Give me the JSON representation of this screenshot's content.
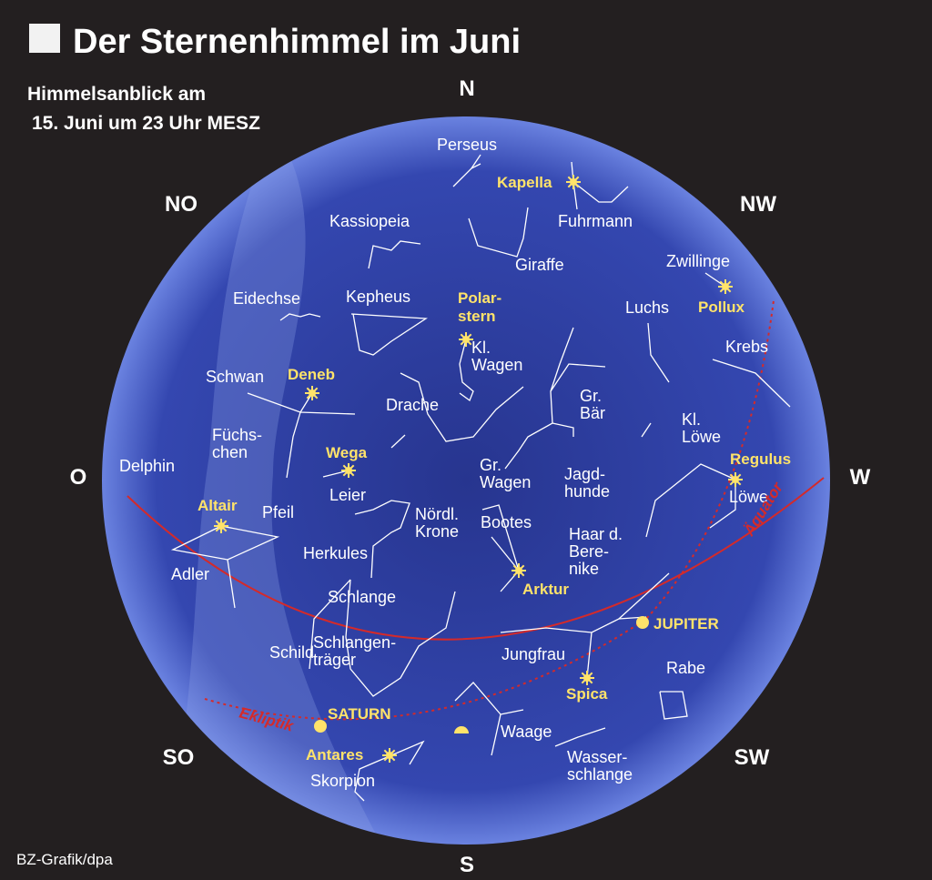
{
  "title": "Der Sternenhimmel im Juni",
  "subtitle": [
    "Himmelsanblick am",
    "15. Juni um 23 Uhr MESZ"
  ],
  "directions": [
    "N",
    "NO",
    "NW",
    "O",
    "W",
    "SO",
    "SW",
    "S"
  ],
  "constellations": [
    [
      "Perseus"
    ],
    [
      "Fuhrmann"
    ],
    [
      "Kassiopeia"
    ],
    [
      "Giraffe"
    ],
    [
      "Zwillinge"
    ],
    [
      "Eidechse"
    ],
    [
      "Kepheus"
    ],
    [
      "Luchs"
    ],
    [
      "Krebs"
    ],
    [
      "Schwan"
    ],
    [
      "Kl.",
      "Wagen"
    ],
    [
      "Drache"
    ],
    [
      "Gr.",
      "Bär"
    ],
    [
      "Kl.",
      "Löwe"
    ],
    [
      "Füchs-",
      "chen"
    ],
    [
      "Delphin"
    ],
    [
      "Gr.",
      "Wagen"
    ],
    [
      "Jagd-",
      "hunde"
    ],
    [
      "Leier"
    ],
    [
      "Pfeil"
    ],
    [
      "Löwe"
    ],
    [
      "Nördl.",
      "Krone"
    ],
    [
      "Bootes"
    ],
    [
      "Haar d.",
      "Bere-",
      "nike"
    ],
    [
      "Herkules"
    ],
    [
      "Adler"
    ],
    [
      "Schlange"
    ],
    [
      "Schlangen-",
      "träger"
    ],
    [
      "Schild"
    ],
    [
      "Jungfrau"
    ],
    [
      "Rabe"
    ],
    [
      "Waage"
    ],
    [
      "Wasser-",
      "schlange"
    ],
    [
      "Skorpion"
    ]
  ],
  "stars": [
    [
      "Kapella"
    ],
    [
      "Pollux"
    ],
    [
      "Polar-",
      "stern"
    ],
    [
      "Deneb"
    ],
    [
      "Wega"
    ],
    [
      "Regulus"
    ],
    [
      "Altair"
    ],
    [
      "Arktur"
    ],
    [
      "Spica"
    ],
    [
      "Antares"
    ]
  ],
  "planets": [
    "JUPITER",
    "SATURN"
  ],
  "circles": [
    "Äquator",
    "Ekliptik"
  ],
  "credit": "BZ-Grafik/dpa"
}
